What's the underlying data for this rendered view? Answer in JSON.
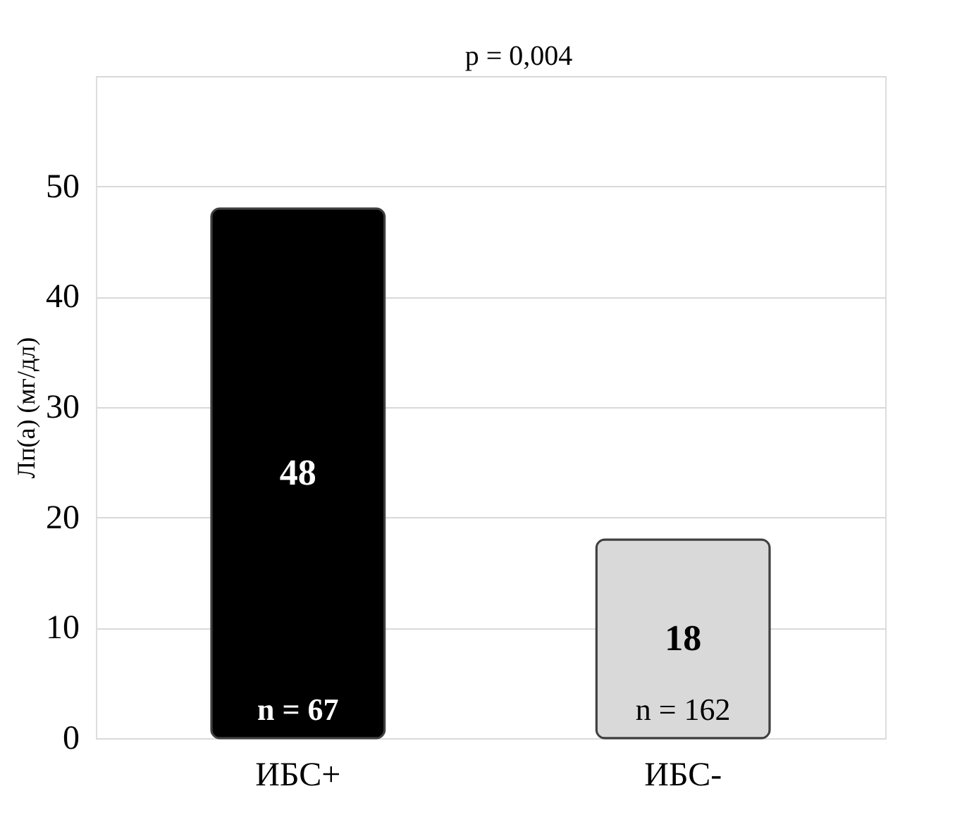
{
  "chart_data": {
    "type": "bar",
    "ylabel": "Лп(а) (мг/дл)",
    "categories": [
      "ИБС+",
      "ИБС-"
    ],
    "values": [
      48,
      18
    ],
    "colors": [
      "#000000",
      "#d9d9d9"
    ],
    "ylim": [
      0,
      60
    ],
    "yticks": [
      0,
      10,
      20,
      30,
      40,
      50,
      {
        "value": 60,
        "label": null
      }
    ],
    "grid": "y",
    "data_labels": true,
    "annotations": [
      "n = 67",
      "n = 162",
      "p = 0,004"
    ]
  }
}
